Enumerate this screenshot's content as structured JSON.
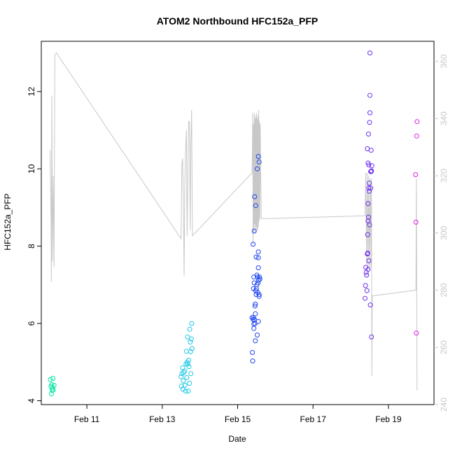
{
  "chart_data": {
    "type": "scatter",
    "title": "ATOM2 Northbound HFC152a_PFP",
    "xlabel": "Date",
    "ylabel": "HFC152a_PFP",
    "xlim": [
      "2016-02-09T19:00",
      "2016-02-20T05:00"
    ],
    "ylim": [
      3.9,
      13.3
    ],
    "y2lim": [
      240,
      367
    ],
    "x_ticks": [
      {
        "label": "Feb 11",
        "value": "2016-02-11T00:00"
      },
      {
        "label": "Feb 13",
        "value": "2016-02-13T00:00"
      },
      {
        "label": "Feb 15",
        "value": "2016-02-15T00:00"
      },
      {
        "label": "Feb 17",
        "value": "2016-02-17T00:00"
      },
      {
        "label": "Feb 19",
        "value": "2016-02-19T00:00"
      }
    ],
    "y_ticks": [
      4,
      6,
      8,
      10,
      12
    ],
    "y2_ticks": [
      240,
      260,
      280,
      300,
      320,
      340,
      360
    ],
    "grid": false,
    "colors": {
      "line": "#c8c8c8",
      "axis": "#000000",
      "right_axis": "#c8c8c8"
    },
    "point_style": "open-circle",
    "series": [
      {
        "color": "#00e5a6",
        "points": [
          [
            "2016-02-10T00:48",
            4.55
          ],
          [
            "2016-02-10T01:12",
            4.37
          ],
          [
            "2016-02-10T01:26",
            4.18
          ],
          [
            "2016-02-10T01:40",
            4.42
          ],
          [
            "2016-02-10T01:55",
            4.27
          ],
          [
            "2016-02-10T02:09",
            4.33
          ],
          [
            "2016-02-10T02:24",
            4.58
          ],
          [
            "2016-02-10T02:38",
            4.28
          ],
          [
            "2016-02-10T03:07",
            4.4
          ]
        ]
      },
      {
        "color": "#1fc8e6",
        "points": [
          [
            "2016-02-13T12:00",
            4.62
          ],
          [
            "2016-02-13T12:14",
            4.38
          ],
          [
            "2016-02-13T12:29",
            4.7
          ],
          [
            "2016-02-13T12:58",
            4.85
          ],
          [
            "2016-02-13T13:12",
            4.3
          ],
          [
            "2016-02-13T13:26",
            4.52
          ],
          [
            "2016-02-13T13:41",
            4.73
          ],
          [
            "2016-02-13T14:10",
            4.77
          ],
          [
            "2016-02-13T14:24",
            4.4
          ],
          [
            "2016-02-13T14:53",
            4.25
          ],
          [
            "2016-02-13T15:07",
            4.95
          ],
          [
            "2016-02-13T15:22",
            5.28
          ],
          [
            "2016-02-13T15:36",
            4.6
          ],
          [
            "2016-02-13T15:50",
            5.0
          ],
          [
            "2016-02-13T16:05",
            5.65
          ],
          [
            "2016-02-13T16:19",
            4.95
          ],
          [
            "2016-02-13T16:34",
            4.25
          ],
          [
            "2016-02-13T16:48",
            5.05
          ],
          [
            "2016-02-13T17:02",
            4.88
          ],
          [
            "2016-02-13T17:17",
            4.45
          ],
          [
            "2016-02-13T17:31",
            5.85
          ],
          [
            "2016-02-13T17:46",
            5.52
          ],
          [
            "2016-02-13T18:00",
            5.27
          ],
          [
            "2016-02-13T18:14",
            4.7
          ],
          [
            "2016-02-13T18:29",
            5.6
          ],
          [
            "2016-02-13T18:43",
            6.0
          ],
          [
            "2016-02-13T18:58",
            5.35
          ]
        ]
      },
      {
        "color": "#1e44f0",
        "points": [
          [
            "2016-02-15T09:07",
            6.15
          ],
          [
            "2016-02-15T09:22",
            5.25
          ],
          [
            "2016-02-15T09:36",
            5.03
          ],
          [
            "2016-02-15T09:50",
            8.05
          ],
          [
            "2016-02-15T09:50",
            6.1
          ],
          [
            "2016-02-15T10:05",
            6.15
          ],
          [
            "2016-02-15T10:05",
            6.9
          ],
          [
            "2016-02-15T10:19",
            5.87
          ],
          [
            "2016-02-15T10:19",
            7.2
          ],
          [
            "2016-02-15T10:19",
            5.98
          ],
          [
            "2016-02-15T10:34",
            8.39
          ],
          [
            "2016-02-15T10:34",
            7.05
          ],
          [
            "2016-02-15T10:48",
            9.28
          ],
          [
            "2016-02-15T10:48",
            6.1
          ],
          [
            "2016-02-15T11:02",
            6.45
          ],
          [
            "2016-02-15T11:02",
            6.0
          ],
          [
            "2016-02-15T11:17",
            6.5
          ],
          [
            "2016-02-15T11:17",
            5.55
          ],
          [
            "2016-02-15T11:17",
            6.25
          ],
          [
            "2016-02-15T11:31",
            9.05
          ],
          [
            "2016-02-15T11:31",
            6.85
          ],
          [
            "2016-02-15T11:46",
            7.72
          ],
          [
            "2016-02-15T11:46",
            6.75
          ],
          [
            "2016-02-15T12:00",
            6.9
          ],
          [
            "2016-02-15T12:14",
            7.25
          ],
          [
            "2016-02-15T12:14",
            7.0
          ],
          [
            "2016-02-15T12:29",
            10.0
          ],
          [
            "2016-02-15T12:29",
            5.7
          ],
          [
            "2016-02-15T12:43",
            7.2
          ],
          [
            "2016-02-15T12:43",
            6.8
          ],
          [
            "2016-02-15T12:58",
            7.05
          ],
          [
            "2016-02-15T13:12",
            10.32
          ],
          [
            "2016-02-15T13:12",
            7.44
          ],
          [
            "2016-02-15T13:12",
            7.7
          ],
          [
            "2016-02-15T13:12",
            6.05
          ],
          [
            "2016-02-15T13:12",
            7.85
          ],
          [
            "2016-02-15T13:26",
            7.12
          ],
          [
            "2016-02-15T13:41",
            6.7
          ],
          [
            "2016-02-15T13:41",
            10.18
          ],
          [
            "2016-02-15T13:41",
            6.75
          ],
          [
            "2016-02-15T13:55",
            7.2
          ],
          [
            "2016-02-15T14:10",
            7.15
          ]
        ]
      },
      {
        "color": "#6a2ef0",
        "points": [
          [
            "2016-02-18T09:07",
            6.65
          ],
          [
            "2016-02-18T09:22",
            6.98
          ],
          [
            "2016-02-18T09:36",
            7.45
          ],
          [
            "2016-02-18T09:50",
            7.32
          ],
          [
            "2016-02-18T10:05",
            7.25
          ],
          [
            "2016-02-18T10:19",
            6.85
          ],
          [
            "2016-02-18T10:34",
            7.8
          ],
          [
            "2016-02-18T10:34",
            10.52
          ],
          [
            "2016-02-18T10:48",
            7.82
          ],
          [
            "2016-02-18T10:48",
            8.3
          ],
          [
            "2016-02-18T11:02",
            9.1
          ],
          [
            "2016-02-18T11:02",
            8.65
          ],
          [
            "2016-02-18T11:02",
            10.15
          ],
          [
            "2016-02-18T11:02",
            7.4
          ],
          [
            "2016-02-18T11:17",
            8.75
          ],
          [
            "2016-02-18T11:17",
            10.9
          ],
          [
            "2016-02-18T11:31",
            7.62
          ],
          [
            "2016-02-18T11:31",
            9.5
          ],
          [
            "2016-02-18T11:31",
            10.1
          ],
          [
            "2016-02-18T11:46",
            9.63
          ],
          [
            "2016-02-18T11:46",
            9.42
          ],
          [
            "2016-02-18T12:00",
            11.2
          ],
          [
            "2016-02-18T12:00",
            8.55
          ],
          [
            "2016-02-18T12:14",
            11.9
          ],
          [
            "2016-02-18T12:14",
            13.0
          ],
          [
            "2016-02-18T12:14",
            11.45
          ],
          [
            "2016-02-18T12:29",
            6.48
          ],
          [
            "2016-02-18T12:43",
            9.5
          ],
          [
            "2016-02-18T12:43",
            9.93
          ],
          [
            "2016-02-18T12:58",
            10.48
          ],
          [
            "2016-02-18T12:58",
            9.93
          ],
          [
            "2016-02-18T13:12",
            5.65
          ],
          [
            "2016-02-18T13:12",
            9.95
          ],
          [
            "2016-02-18T13:26",
            10.08
          ]
        ]
      },
      {
        "color": "#e21ee6",
        "points": [
          [
            "2016-02-19T17:17",
            9.85
          ],
          [
            "2016-02-19T17:31",
            8.62
          ],
          [
            "2016-02-19T17:46",
            5.75
          ],
          [
            "2016-02-19T18:00",
            10.85
          ],
          [
            "2016-02-19T18:14",
            11.22
          ]
        ]
      }
    ],
    "altitude_line": {
      "axis": "right",
      "color": "#c8c8c8",
      "points": [
        [
          "2016-02-10T00:34",
          329
        ],
        [
          "2016-02-10T00:48",
          318
        ],
        [
          "2016-02-10T01:12",
          305
        ],
        [
          "2016-02-10T01:26",
          283
        ],
        [
          "2016-02-10T01:40",
          348
        ],
        [
          "2016-02-10T02:09",
          290
        ],
        [
          "2016-02-10T02:38",
          320
        ],
        [
          "2016-02-10T03:07",
          288
        ],
        [
          "2016-02-10T03:36",
          362
        ],
        [
          "2016-02-10T04:34",
          363
        ],
        [
          "2016-02-13T12:00",
          298
        ],
        [
          "2016-02-13T12:29",
          324
        ],
        [
          "2016-02-13T12:58",
          326
        ],
        [
          "2016-02-13T13:26",
          313
        ],
        [
          "2016-02-13T13:55",
          285
        ],
        [
          "2016-02-13T14:24",
          318
        ],
        [
          "2016-02-13T14:53",
          330
        ],
        [
          "2016-02-13T15:22",
          336
        ],
        [
          "2016-02-13T15:50",
          299
        ],
        [
          "2016-02-13T16:19",
          319
        ],
        [
          "2016-02-13T16:48",
          339
        ],
        [
          "2016-02-13T17:17",
          339
        ],
        [
          "2016-02-13T17:46",
          301
        ],
        [
          "2016-02-13T18:14",
          331
        ],
        [
          "2016-02-13T18:43",
          343
        ],
        [
          "2016-02-13T19:12",
          299
        ],
        [
          "2016-02-15T09:07",
          321
        ],
        [
          "2016-02-15T09:22",
          328
        ],
        [
          "2016-02-15T09:36",
          342
        ],
        [
          "2016-02-15T09:50",
          296
        ],
        [
          "2016-02-15T10:05",
          338
        ],
        [
          "2016-02-15T10:19",
          300
        ],
        [
          "2016-02-15T10:34",
          342
        ],
        [
          "2016-02-15T10:48",
          303
        ],
        [
          "2016-02-15T11:02",
          340
        ],
        [
          "2016-02-15T11:17",
          300
        ],
        [
          "2016-02-15T11:31",
          341
        ],
        [
          "2016-02-15T11:46",
          302
        ],
        [
          "2016-02-15T12:00",
          342
        ],
        [
          "2016-02-15T12:14",
          301
        ],
        [
          "2016-02-15T12:29",
          340
        ],
        [
          "2016-02-15T12:43",
          301
        ],
        [
          "2016-02-15T12:58",
          341
        ],
        [
          "2016-02-15T13:12",
          302
        ],
        [
          "2016-02-15T13:26",
          343
        ],
        [
          "2016-02-15T13:41",
          304
        ],
        [
          "2016-02-15T13:55",
          339
        ],
        [
          "2016-02-15T14:10",
          305
        ],
        [
          "2016-02-15T14:24",
          338
        ],
        [
          "2016-02-15T14:38",
          323
        ],
        [
          "2016-02-15T15:07",
          305
        ],
        [
          "2016-02-18T09:07",
          306
        ],
        [
          "2016-02-18T09:36",
          321
        ],
        [
          "2016-02-18T10:05",
          289
        ],
        [
          "2016-02-18T10:34",
          321
        ],
        [
          "2016-02-18T11:02",
          287
        ],
        [
          "2016-02-18T11:31",
          320
        ],
        [
          "2016-02-18T12:00",
          287
        ],
        [
          "2016-02-18T12:29",
          319
        ],
        [
          "2016-02-18T12:58",
          288
        ],
        [
          "2016-02-18T13:12",
          319
        ],
        [
          "2016-02-18T13:26",
          250
        ],
        [
          "2016-02-18T13:41",
          278
        ],
        [
          "2016-02-19T17:31",
          280
        ],
        [
          "2016-02-19T17:46",
          319
        ],
        [
          "2016-02-19T18:14",
          245
        ]
      ]
    }
  }
}
